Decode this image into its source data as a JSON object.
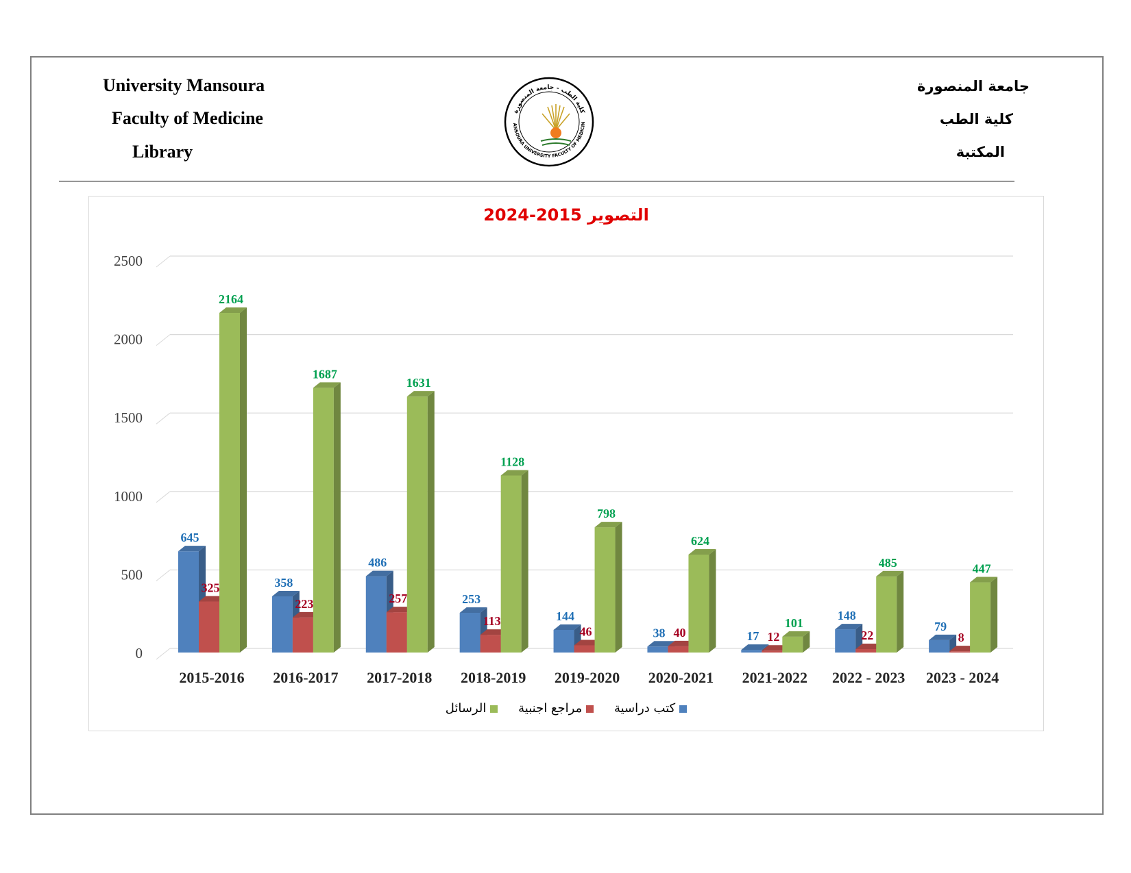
{
  "header": {
    "left_line1": "University Mansoura",
    "left_line2": "Faculty of Medicine",
    "left_line3": "Library",
    "right_line1": "جامعة المنصورة",
    "right_line2": "كلية الطب",
    "right_line3": "المكتبة"
  },
  "logo": {
    "top_text": "كلية الطب - جامعة المنصورة",
    "bottom_text": "MANSOURA UNIVERSITY FACULTY OF MEDICINE"
  },
  "colors": {
    "series1": "#4f81bd",
    "series2": "#c0504d",
    "series3": "#9bbb59",
    "label1": "#1f6fb5",
    "label2": "#a50021",
    "label3": "#00a050",
    "title": "#e00000"
  },
  "chart_data": {
    "type": "bar",
    "title": "التصوير 2015-2024",
    "categories": [
      "2015-2016",
      "2016-2017",
      "2017-2018",
      "2018-2019",
      "2019-2020",
      "2020-2021",
      "2021-2022",
      "2022 - 2023",
      "2023 - 2024"
    ],
    "series": [
      {
        "name": "كتب دراسية",
        "values": [
          645,
          358,
          486,
          253,
          144,
          38,
          17,
          148,
          79
        ]
      },
      {
        "name": "مراجع اجنبية",
        "values": [
          325,
          223,
          257,
          113,
          46,
          40,
          12,
          22,
          8
        ]
      },
      {
        "name": "الرسائل",
        "values": [
          2164,
          1687,
          1631,
          1128,
          798,
          624,
          101,
          485,
          447
        ]
      }
    ],
    "ylim": [
      0,
      2500
    ],
    "yticks": [
      0,
      500,
      1000,
      1500,
      2000,
      2500
    ],
    "grid": true,
    "legend_position": "bottom",
    "style": "3d-clustered-column"
  }
}
